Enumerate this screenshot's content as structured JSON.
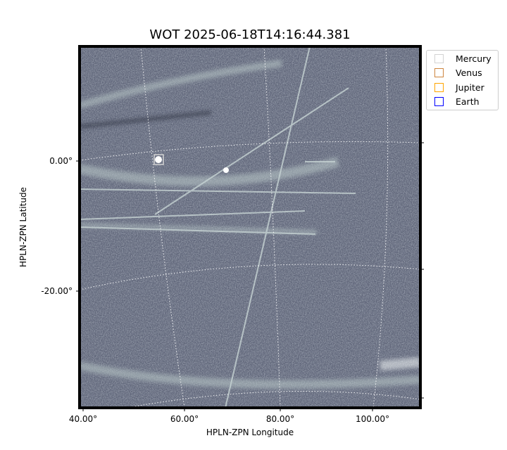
{
  "chart_data": {
    "type": "heatmap",
    "title": "WOT 2025-06-18T14:16:44.381",
    "xlabel": "HPLN-ZPN Longitude",
    "ylabel": "HPLN-ZPN Latitude",
    "x_ticks": [
      "40.00°",
      "60.00°",
      "80.00°",
      "100.00°"
    ],
    "y_ticks": [
      "0.00°",
      "-20.00°"
    ],
    "grid": true,
    "colormap": "bone",
    "legend": {
      "placement": "outside-top-right",
      "entries": [
        {
          "name": "Mercury",
          "color": "#d3d3d3"
        },
        {
          "name": "Venus",
          "color": "#cd853f"
        },
        {
          "name": "Jupiter",
          "color": "#ffa500"
        },
        {
          "name": "Earth",
          "color": "#0000ff"
        }
      ]
    }
  }
}
